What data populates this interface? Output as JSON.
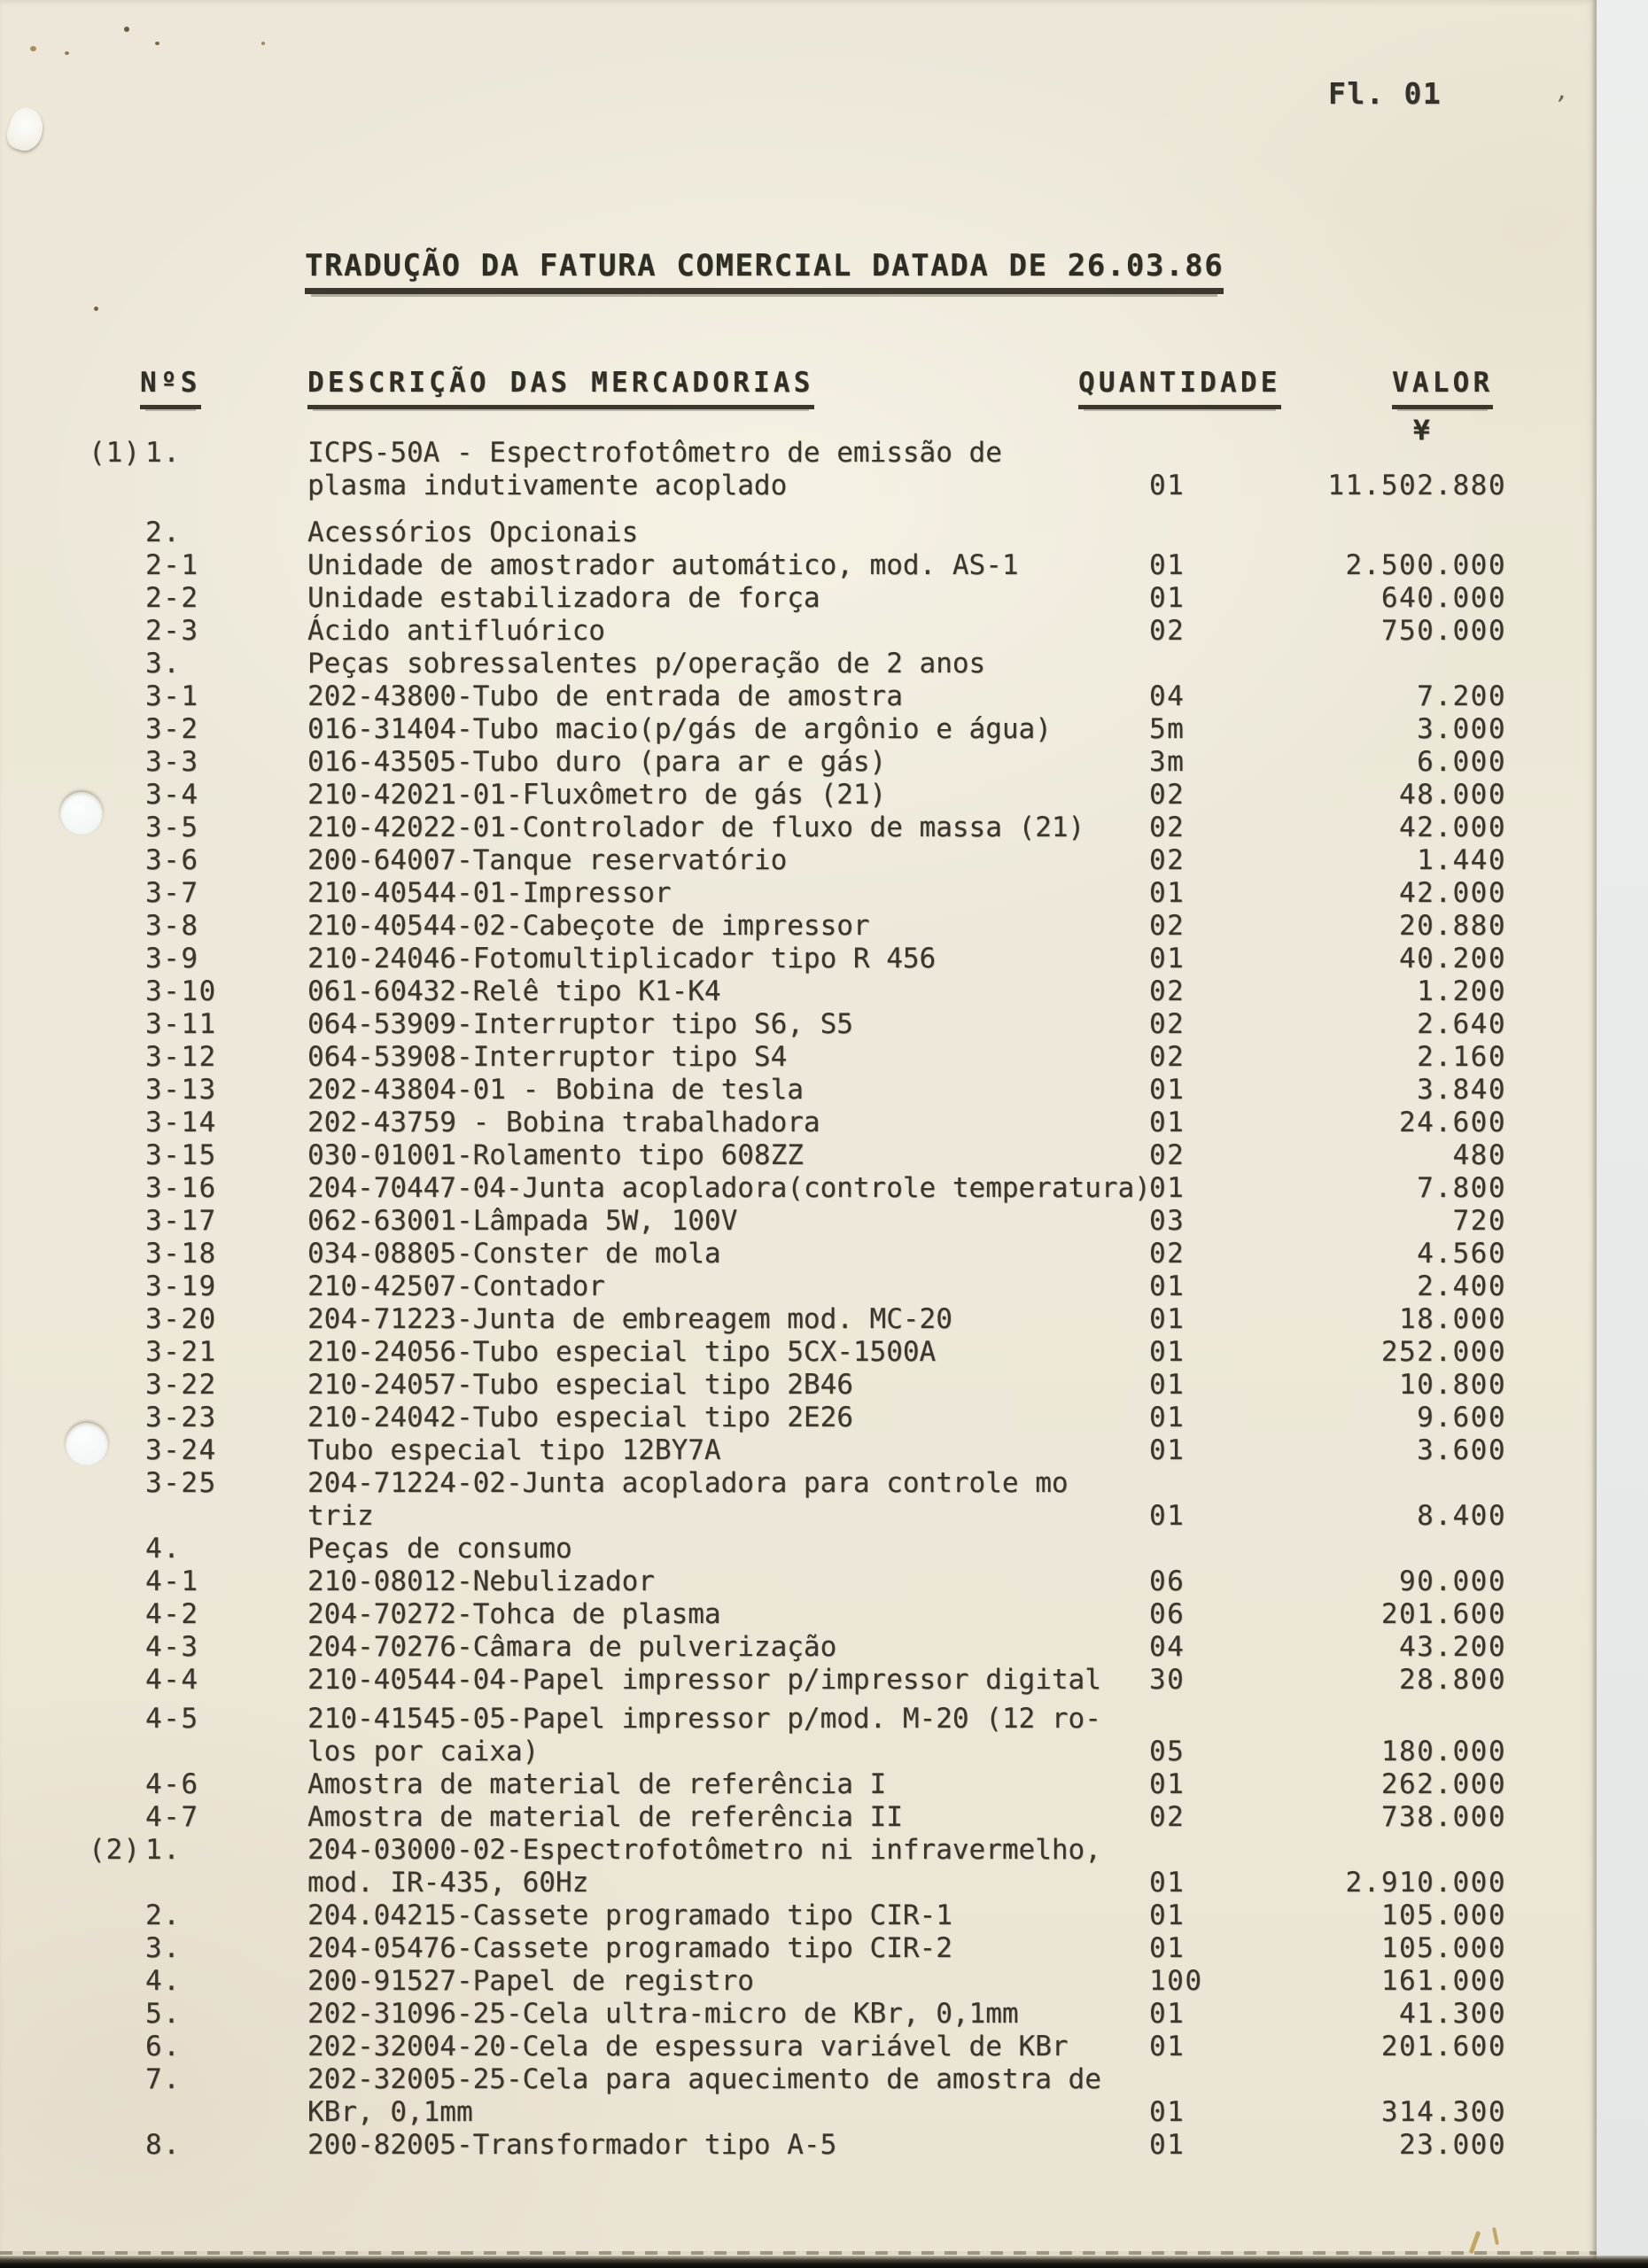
{
  "page": {
    "folio": "Fl. 01",
    "title": "TRADUÇÃO DA FATURA COMERCIAL DATADA DE 26.03.86"
  },
  "table": {
    "headers": [
      "NºS",
      "DESCRIÇÃO DAS MERCADORIAS",
      "QUANTIDADE",
      "VALOR"
    ],
    "currency_symbol": "¥",
    "rows": [
      {
        "group": "(1)",
        "num": "1.",
        "lines": [
          "ICPS-50A - Espectrofotômetro de emissão de",
          "plasma indutivamente acoplado"
        ],
        "qty": "01",
        "value": "11.502.880"
      },
      {
        "num": "2.",
        "gap": "lg",
        "lines": [
          "Acessórios Opcionais"
        ]
      },
      {
        "num": "2-1",
        "lines": [
          "Unidade de amostrador automático, mod. AS-1"
        ],
        "qty": "01",
        "value": "2.500.000"
      },
      {
        "num": "2-2",
        "lines": [
          "Unidade estabilizadora de força"
        ],
        "qty": "01",
        "value": "640.000"
      },
      {
        "num": "2-3",
        "lines": [
          "Ácido antifluórico"
        ],
        "qty": "02",
        "value": "750.000"
      },
      {
        "num": "3.",
        "lines": [
          "Peças sobressalentes p/operação de 2 anos"
        ]
      },
      {
        "num": "3-1",
        "lines": [
          "202-43800-Tubo de entrada de amostra"
        ],
        "qty": "04",
        "value": "7.200"
      },
      {
        "num": "3-2",
        "lines": [
          "016-31404-Tubo macio(p/gás de argônio e água)"
        ],
        "qty": "5m",
        "value": "3.000"
      },
      {
        "num": "3-3",
        "lines": [
          "016-43505-Tubo duro (para ar e gás)"
        ],
        "qty": "3m",
        "value": "6.000"
      },
      {
        "num": "3-4",
        "lines": [
          "210-42021-01-Fluxômetro de gás (21)"
        ],
        "qty": "02",
        "value": "48.000"
      },
      {
        "num": "3-5",
        "lines": [
          "210-42022-01-Controlador de fluxo de massa (21)"
        ],
        "qty": "02",
        "value": "42.000"
      },
      {
        "num": "3-6",
        "lines": [
          "200-64007-Tanque reservatório"
        ],
        "qty": "02",
        "value": "1.440"
      },
      {
        "num": "3-7",
        "lines": [
          "210-40544-01-Impressor"
        ],
        "qty": "01",
        "value": "42.000"
      },
      {
        "num": "3-8",
        "lines": [
          "210-40544-02-Cabeçote de impressor"
        ],
        "qty": "02",
        "value": "20.880"
      },
      {
        "num": "3-9",
        "lines": [
          "210-24046-Fotomultiplicador tipo R 456"
        ],
        "qty": "01",
        "value": "40.200"
      },
      {
        "num": "3-10",
        "lines": [
          "061-60432-Relê tipo K1-K4"
        ],
        "qty": "02",
        "value": "1.200"
      },
      {
        "num": "3-11",
        "lines": [
          "064-53909-Interruptor tipo S6, S5"
        ],
        "qty": "02",
        "value": "2.640"
      },
      {
        "num": "3-12",
        "lines": [
          "064-53908-Interruptor tipo S4"
        ],
        "qty": "02",
        "value": "2.160"
      },
      {
        "num": "3-13",
        "lines": [
          "202-43804-01 - Bobina de tesla"
        ],
        "qty": "01",
        "value": "3.840"
      },
      {
        "num": "3-14",
        "lines": [
          "202-43759 - Bobina trabalhadora"
        ],
        "qty": "01",
        "value": "24.600"
      },
      {
        "num": "3-15",
        "lines": [
          "030-01001-Rolamento tipo 608ZZ"
        ],
        "qty": "02",
        "value": "480"
      },
      {
        "num": "3-16",
        "lines": [
          "204-70447-04-Junta acopladora(controle temperatura)"
        ],
        "qty": "01",
        "value": "7.800"
      },
      {
        "num": "3-17",
        "lines": [
          "062-63001-Lâmpada 5W, 100V"
        ],
        "qty": "03",
        "value": "720"
      },
      {
        "num": "3-18",
        "lines": [
          "034-08805-Conster de mola"
        ],
        "qty": "02",
        "value": "4.560"
      },
      {
        "num": "3-19",
        "lines": [
          "210-42507-Contador"
        ],
        "qty": "01",
        "value": "2.400"
      },
      {
        "num": "3-20",
        "lines": [
          "204-71223-Junta de embreagem mod. MC-20"
        ],
        "qty": "01",
        "value": "18.000"
      },
      {
        "num": "3-21",
        "lines": [
          "210-24056-Tubo especial tipo 5CX-1500A"
        ],
        "qty": "01",
        "value": "252.000"
      },
      {
        "num": "3-22",
        "lines": [
          "210-24057-Tubo especial tipo 2B46"
        ],
        "qty": "01",
        "value": "10.800"
      },
      {
        "num": "3-23",
        "lines": [
          "210-24042-Tubo especial tipo 2E26"
        ],
        "qty": "01",
        "value": "9.600"
      },
      {
        "num": "3-24",
        "lines": [
          "Tubo especial tipo 12BY7A"
        ],
        "qty": "01",
        "value": "3.600"
      },
      {
        "num": "3-25",
        "lines": [
          "204-71224-02-Junta acopladora para controle mo",
          "triz"
        ],
        "qty": "01",
        "value": "8.400"
      },
      {
        "num": "4.",
        "lines": [
          "Peças de consumo"
        ]
      },
      {
        "num": "4-1",
        "lines": [
          "210-08012-Nebulizador"
        ],
        "qty": "06",
        "value": "90.000"
      },
      {
        "num": "4-2",
        "lines": [
          "204-70272-Tohca de plasma"
        ],
        "qty": "06",
        "value": "201.600"
      },
      {
        "num": "4-3",
        "lines": [
          "204-70276-Câmara de pulverização"
        ],
        "qty": "04",
        "value": "43.200"
      },
      {
        "num": "4-4",
        "lines": [
          "210-40544-04-Papel impressor p/impressor digital"
        ],
        "qty": "30",
        "value": "28.800"
      },
      {
        "num": "4-5",
        "gap": "sm",
        "lines": [
          "210-41545-05-Papel impressor p/mod. M-20 (12 ro-",
          "los por caixa)"
        ],
        "qty": "05",
        "value": "180.000"
      },
      {
        "num": "4-6",
        "lines": [
          "Amostra de material de referência I"
        ],
        "qty": "01",
        "value": "262.000"
      },
      {
        "num": "4-7",
        "lines": [
          "Amostra de material de referência II"
        ],
        "qty": "02",
        "value": "738.000"
      },
      {
        "group": "(2)",
        "num": "1.",
        "lines": [
          "204-03000-02-Espectrofotômetro ni infravermelho,",
          "mod. IR-435, 60Hz"
        ],
        "qty": "01",
        "value": "2.910.000"
      },
      {
        "num": "2.",
        "lines": [
          "204.04215-Cassete programado tipo CIR-1"
        ],
        "qty": "01",
        "value": "105.000"
      },
      {
        "num": "3.",
        "lines": [
          "204-05476-Cassete programado tipo CIR-2"
        ],
        "qty": "01",
        "value": "105.000"
      },
      {
        "num": "4.",
        "lines": [
          "200-91527-Papel de registro"
        ],
        "qty": "100",
        "value": "161.000"
      },
      {
        "num": "5.",
        "lines": [
          "202-31096-25-Cela ultra-micro de KBr, 0,1mm"
        ],
        "qty": "01",
        "value": "41.300"
      },
      {
        "num": "6.",
        "lines": [
          "202-32004-20-Cela de espessura variável de KBr"
        ],
        "qty": "01",
        "value": "201.600"
      },
      {
        "num": "7.",
        "lines": [
          "202-32005-25-Cela para aquecimento de amostra de",
          "KBr, 0,1mm"
        ],
        "qty": "01",
        "value": "314.300"
      },
      {
        "num": "8.",
        "lines": [
          "200-82005-Transformador tipo A-5"
        ],
        "qty": "01",
        "value": "23.000"
      }
    ]
  }
}
